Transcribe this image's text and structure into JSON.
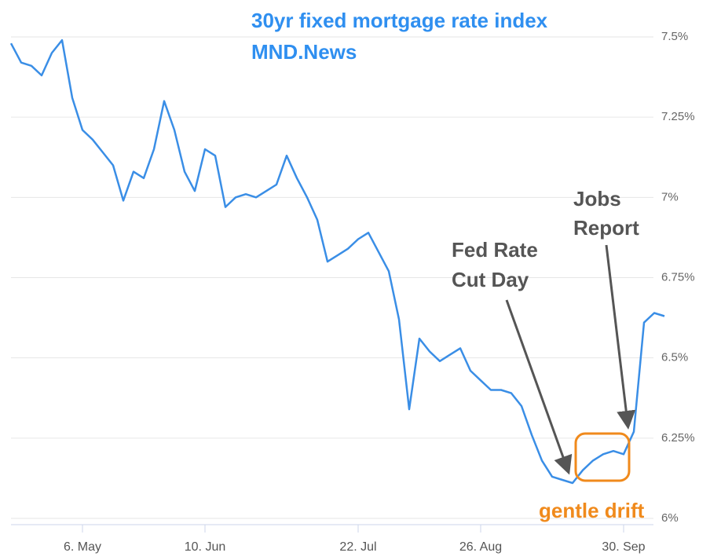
{
  "chart_data": {
    "type": "line",
    "title": "30yr fixed mortgage rate index",
    "subtitle": "MND.News",
    "annotations": [
      "Fed Rate",
      "Cut Day",
      "Jobs",
      "Report",
      "gentle drift"
    ],
    "categories": [
      null,
      null,
      null,
      null,
      null,
      null,
      null,
      "6. May",
      null,
      null,
      null,
      null,
      null,
      null,
      null,
      null,
      null,
      null,
      null,
      "10. Jun",
      null,
      null,
      null,
      null,
      null,
      null,
      null,
      null,
      null,
      null,
      null,
      null,
      null,
      null,
      "22. Jul",
      null,
      null,
      null,
      null,
      null,
      null,
      null,
      null,
      null,
      null,
      null,
      "26. Aug",
      null,
      null,
      null,
      null,
      null,
      null,
      null,
      null,
      null,
      null,
      null,
      null,
      null,
      "30. Sep",
      null,
      null,
      null,
      null
    ],
    "values": [
      7.48,
      7.42,
      7.41,
      7.38,
      7.45,
      7.49,
      7.31,
      7.21,
      7.18,
      7.14,
      7.1,
      6.99,
      7.08,
      7.06,
      7.15,
      7.3,
      7.21,
      7.08,
      7.02,
      7.15,
      7.13,
      6.97,
      7.0,
      7.01,
      7.0,
      7.02,
      7.04,
      7.13,
      7.06,
      7.0,
      6.93,
      6.8,
      6.82,
      6.84,
      6.87,
      6.89,
      6.83,
      6.77,
      6.62,
      6.34,
      6.56,
      6.52,
      6.49,
      6.51,
      6.53,
      6.46,
      6.43,
      6.4,
      6.4,
      6.39,
      6.35,
      6.26,
      6.18,
      6.13,
      6.12,
      6.11,
      6.15,
      6.18,
      6.2,
      6.21,
      6.2,
      6.27,
      6.61,
      6.64,
      6.63
    ],
    "color": "#3a8ee6",
    "ylim": [
      6,
      7.5
    ],
    "yticks": [
      {
        "value": 6,
        "label": "6%"
      },
      {
        "value": 6.25,
        "label": "6.25%"
      },
      {
        "value": 6.5,
        "label": "6.5%"
      },
      {
        "value": 6.75,
        "label": "6.75%"
      },
      {
        "value": 7,
        "label": "7%"
      },
      {
        "value": 7.25,
        "label": "7.25%"
      },
      {
        "value": 7.5,
        "label": "7.5%"
      }
    ],
    "grid": true
  }
}
